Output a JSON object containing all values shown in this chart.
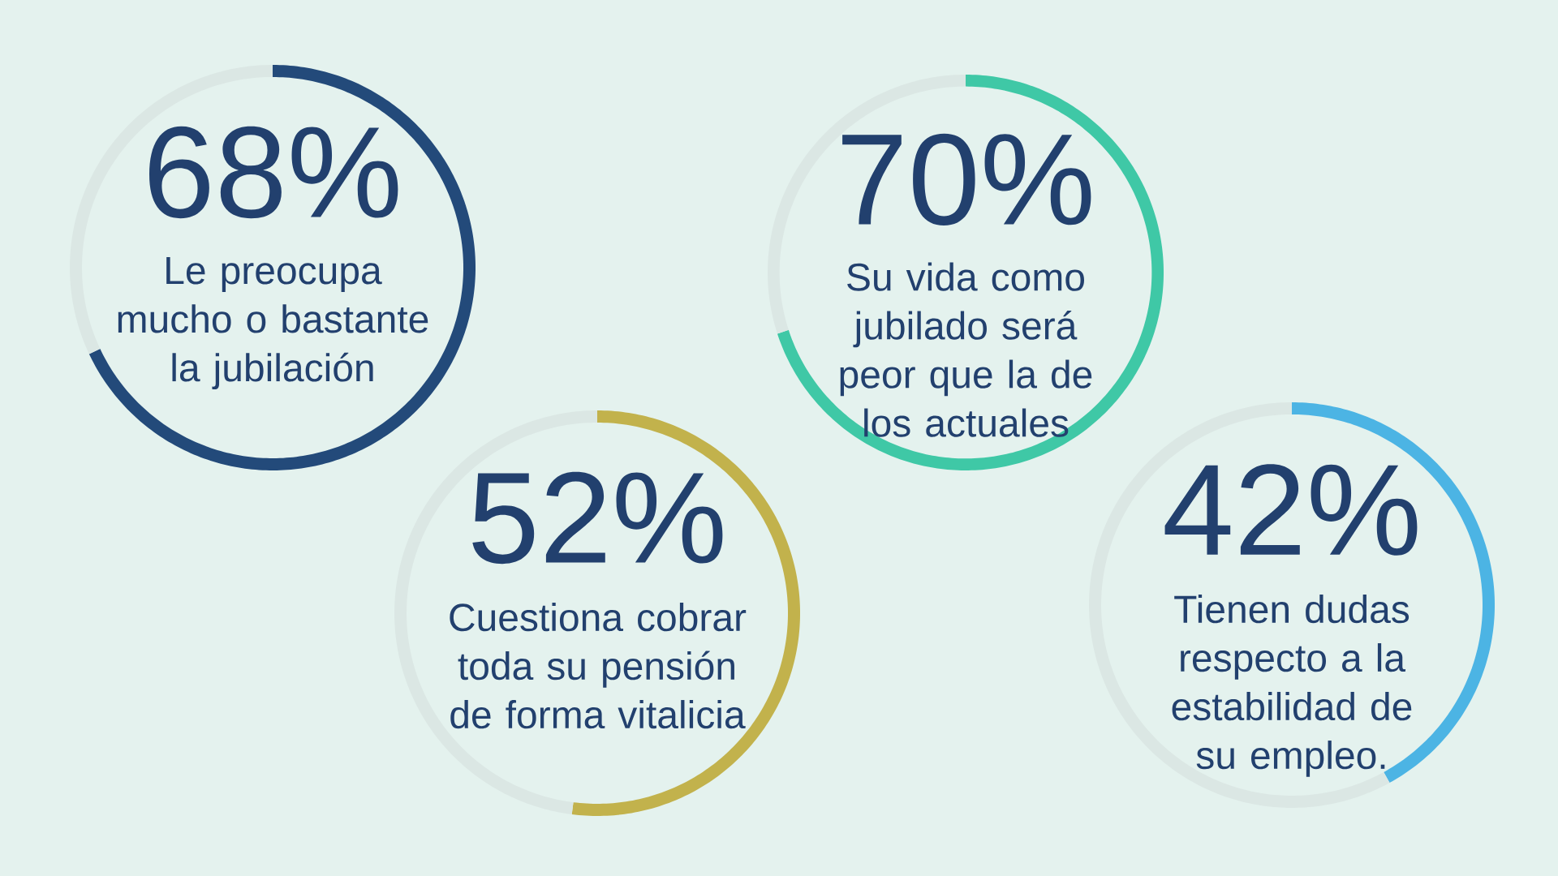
{
  "chart_data": [
    {
      "type": "donut",
      "title": "Le preocupa mucho o bastante la jubilación",
      "categories": [
        null,
        null
      ],
      "values": [
        68,
        32
      ],
      "colors": [
        "#234a7a",
        "#dbe7e4"
      ],
      "value_labels": [
        "68%",
        null
      ]
    },
    {
      "type": "donut",
      "title": "Su vida como jubilado será peor que la de los actuales",
      "categories": [
        null,
        null
      ],
      "values": [
        70,
        30
      ],
      "colors": [
        "#3fc8a6",
        "#dbe7e4"
      ],
      "value_labels": [
        "70%",
        null
      ]
    },
    {
      "type": "donut",
      "title": "Cuestiona cobrar toda su pensión de forma vitalicia",
      "categories": [
        null,
        null
      ],
      "values": [
        52,
        48
      ],
      "colors": [
        "#c2b24c",
        "#dbe7e4"
      ],
      "value_labels": [
        "52%",
        null
      ]
    },
    {
      "type": "donut",
      "title": "Tienen dudas respecto a la estabilidad de su empleo.",
      "categories": [
        null,
        null
      ],
      "values": [
        42,
        58
      ],
      "colors": [
        "#4cb4e4",
        "#dbe7e4"
      ],
      "value_labels": [
        "42%",
        null
      ]
    }
  ]
}
